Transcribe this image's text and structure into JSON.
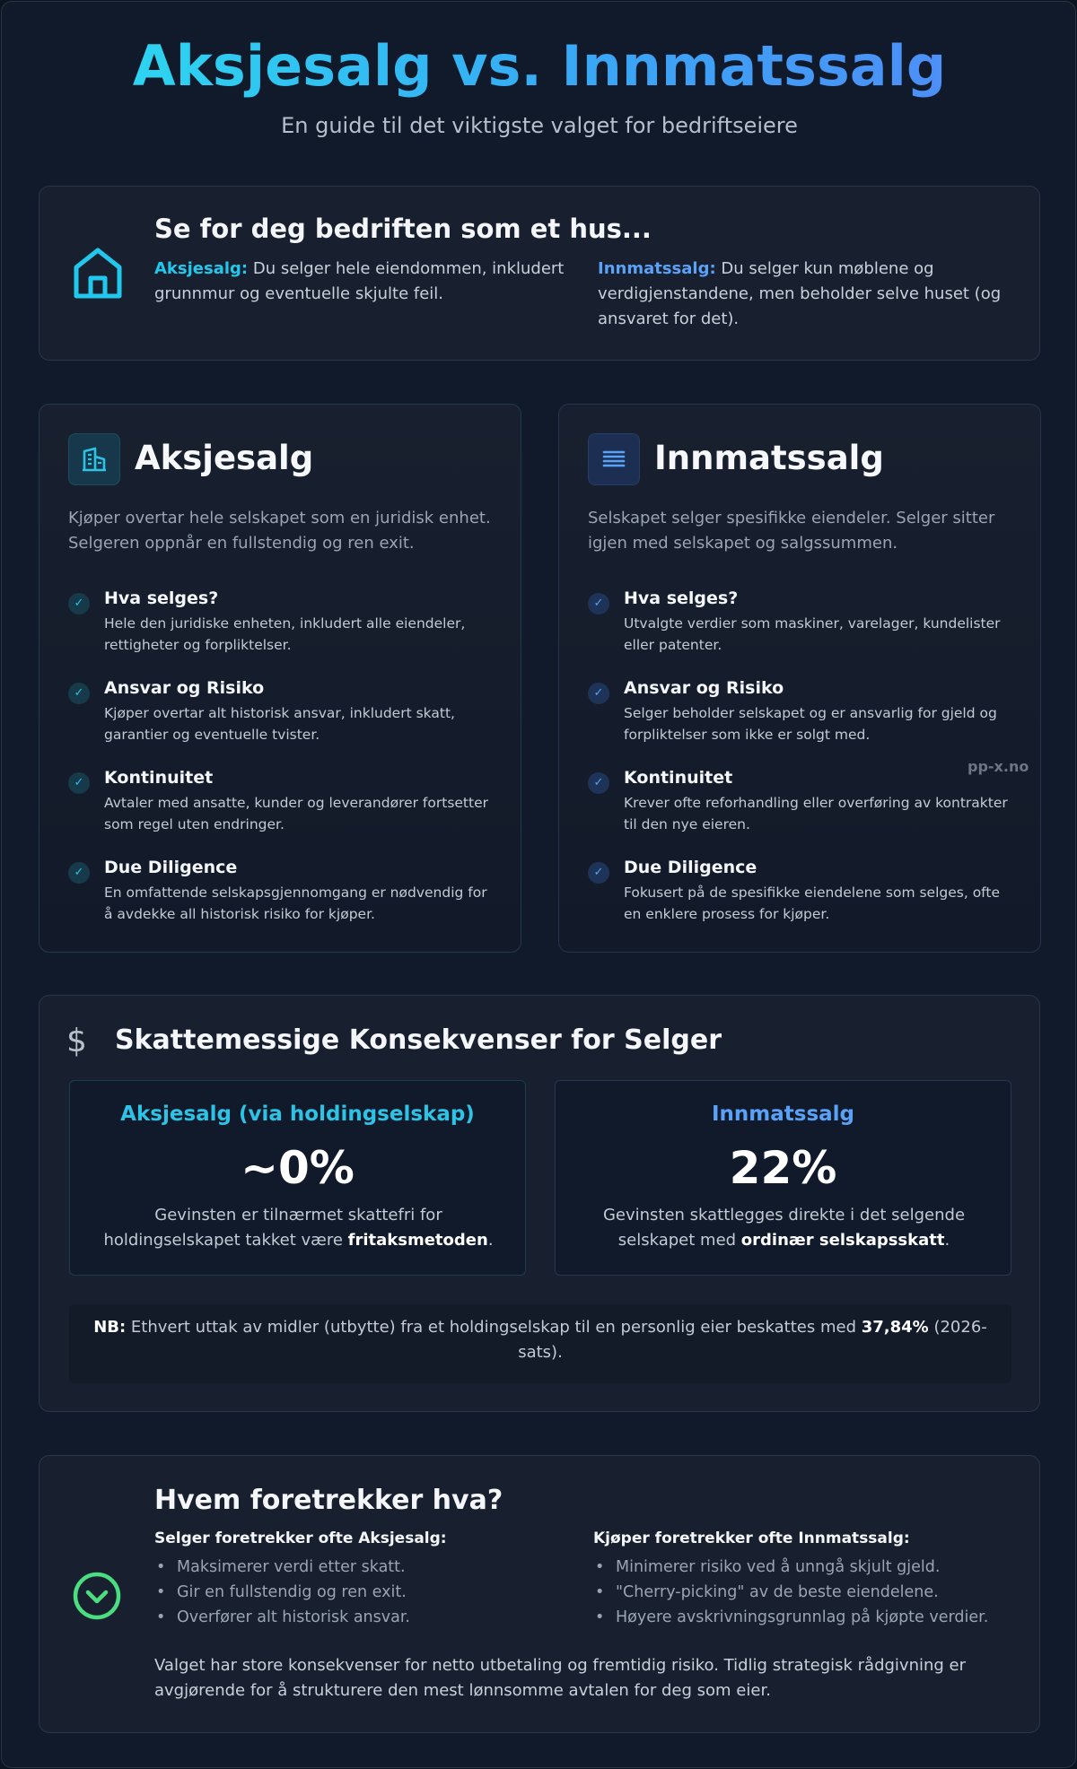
{
  "header": {
    "title": "Aksjesalg vs. Innmatssalg",
    "subtitle": "En guide til det viktigste valget for bedriftseiere"
  },
  "intro": {
    "icon": "house-icon",
    "title": "Se for deg bedriften som et hus...",
    "share_label": "Aksjesalg:",
    "share_text": " Du selger hele eiendommen, inkludert grunnmur og eventuelle skjulte feil.",
    "asset_label": "Innmatssalg:",
    "asset_text": " Du selger kun møblene og verdigjenstandene, men beholder selve huset (og ansvaret for det)."
  },
  "share_sale": {
    "icon": "building-icon",
    "title": "Aksjesalg",
    "description": "Kjøper overtar hele selskapet som en juridisk enhet. Selgeren oppnår en fullstendig og ren exit.",
    "items": [
      {
        "title": "Hva selges?",
        "text": "Hele den juridiske enheten, inkludert alle eiendeler, rettigheter og forpliktelser."
      },
      {
        "title": "Ansvar og Risiko",
        "text": "Kjøper overtar alt historisk ansvar, inkludert skatt, garantier og eventuelle tvister."
      },
      {
        "title": "Kontinuitet",
        "text": "Avtaler med ansatte, kunder og leverandører fortsetter som regel uten endringer."
      },
      {
        "title": "Due Diligence",
        "text": "En omfattende selskapsgjennomgang er nødvendig for å avdekke all historisk risiko for kjøper."
      }
    ]
  },
  "asset_sale": {
    "icon": "list-icon",
    "title": "Innmatssalg",
    "description": "Selskapet selger spesifikke eiendeler. Selger sitter igjen med selskapet og salgssummen.",
    "items": [
      {
        "title": "Hva selges?",
        "text": "Utvalgte verdier som maskiner, varelager, kundelister eller patenter."
      },
      {
        "title": "Ansvar og Risiko",
        "text": "Selger beholder selskapet og er ansvarlig for gjeld og forpliktelser som ikke er solgt med."
      },
      {
        "title": "Kontinuitet",
        "text": "Krever ofte reforhandling eller overføring av kontrakter til den nye eieren."
      },
      {
        "title": "Due Diligence",
        "text": "Fokusert på de spesifikke eiendelene som selges, ofte en enklere prosess for kjøper."
      }
    ]
  },
  "check_glyph": "✓",
  "watermark": "pp-x.no",
  "tax": {
    "icon": "dollar-icon",
    "symbol": "$",
    "title": "Skattemessige Konsekvenser for Selger",
    "share": {
      "title": "Aksjesalg (via holdingselskap)",
      "rate": "~0%",
      "text_before": "Gevinsten er tilnærmet skattefri for holdingselskapet takket være ",
      "text_bold": "fritaksmetoden",
      "text_after": "."
    },
    "asset": {
      "title": "Innmatssalg",
      "rate": "22%",
      "text_before": "Gevinsten skattlegges direkte i det selgende selskapet med ",
      "text_bold": "ordinær selskapsskatt",
      "text_after": "."
    },
    "note_label": "NB:",
    "note_before": " Ethvert uttak av midler (utbytte) fra et holdingselskap til en personlig eier beskattes med ",
    "note_bold": "37,84%",
    "note_after": " (2026-sats)."
  },
  "preferences": {
    "icon": "chevron-down-circle-icon",
    "title": "Hvem foretrekker hva?",
    "seller_heading": "Selger foretrekker ofte Aksjesalg:",
    "seller_items": [
      "Maksimerer verdi etter skatt.",
      "Gir en fullstendig og ren exit.",
      "Overfører alt historisk ansvar."
    ],
    "buyer_heading": "Kjøper foretrekker ofte Innmatssalg:",
    "buyer_items": [
      "Minimerer risiko ved å unngå skjult gjeld.",
      "\"Cherry-picking\" av de beste eiendelene.",
      "Høyere avskrivningsgrunnlag på kjøpte verdier."
    ],
    "summary": "Valget har store konsekvenser for netto utbetaling og fremtidig risiko. Tidlig strategisk rådgivning er avgjørende for å strukturere den mest lønnsomme avtalen for deg som eier."
  },
  "colors": {
    "cyan_accent": "#22c8ec",
    "blue_accent": "#5aa2f7",
    "green_accent": "#4ade80",
    "background": "#111a2b"
  }
}
